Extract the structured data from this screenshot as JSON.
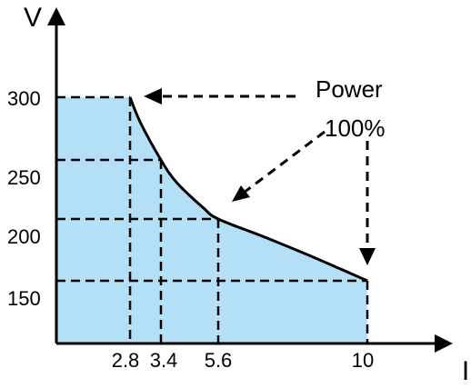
{
  "chart_data": {
    "type": "area",
    "xlabel": "I",
    "ylabel": "V",
    "x_ticks": [
      "2.8",
      "3.4",
      "5.6",
      "10"
    ],
    "y_ticks": [
      "300",
      "250",
      "200",
      "150"
    ],
    "points": [
      {
        "x": 2.8,
        "y": 300
      },
      {
        "x": 3.4,
        "y": 250
      },
      {
        "x": 5.6,
        "y": 200
      },
      {
        "x": 10,
        "y": 150
      }
    ],
    "curve": [
      {
        "x": 2.8,
        "y": 300
      },
      {
        "x": 3.0,
        "y": 280
      },
      {
        "x": 3.4,
        "y": 250
      },
      {
        "x": 4.0,
        "y": 231
      },
      {
        "x": 5.0,
        "y": 210
      },
      {
        "x": 5.6,
        "y": 200
      },
      {
        "x": 7.0,
        "y": 185
      },
      {
        "x": 8.5,
        "y": 168
      },
      {
        "x": 10,
        "y": 150
      }
    ],
    "annotation": {
      "line1": "Power",
      "line2": "100%"
    },
    "fill_color": "#b3e0f7",
    "line_color": "#000000"
  }
}
